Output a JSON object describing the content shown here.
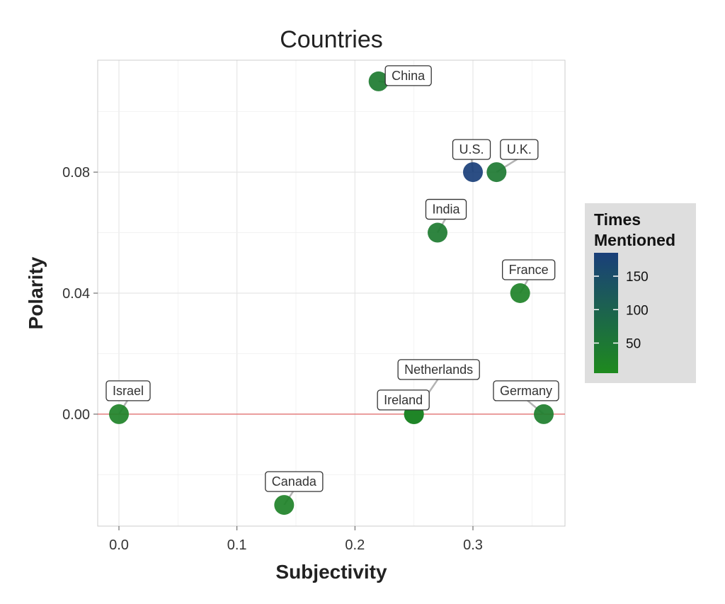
{
  "chart_data": {
    "type": "scatter",
    "title": "Countries",
    "xlabel": "Subjectivity",
    "ylabel": "Polarity",
    "xlim": [
      -0.018,
      0.378
    ],
    "ylim": [
      -0.037,
      0.117
    ],
    "x_ticks": [
      0.0,
      0.1,
      0.2,
      0.3
    ],
    "x_tick_labels": [
      "0.0",
      "0.1",
      "0.2",
      "0.3"
    ],
    "y_ticks": [
      0.0,
      0.04,
      0.08
    ],
    "y_tick_labels": [
      "0.00",
      "0.04",
      "0.08"
    ],
    "reference_line": {
      "y": 0.0,
      "color": "#e06666"
    },
    "points": [
      {
        "label": "China",
        "x": 0.22,
        "y": 0.11,
        "times_mentioned": 40
      },
      {
        "label": "U.S.",
        "x": 0.3,
        "y": 0.08,
        "times_mentioned": 185
      },
      {
        "label": "U.K.",
        "x": 0.32,
        "y": 0.08,
        "times_mentioned": 45
      },
      {
        "label": "India",
        "x": 0.27,
        "y": 0.06,
        "times_mentioned": 40
      },
      {
        "label": "France",
        "x": 0.34,
        "y": 0.04,
        "times_mentioned": 25
      },
      {
        "label": "Israel",
        "x": 0.0,
        "y": 0.0,
        "times_mentioned": 25
      },
      {
        "label": "Netherlands",
        "x": 0.25,
        "y": 0.0,
        "times_mentioned": 20
      },
      {
        "label": "Ireland",
        "x": 0.25,
        "y": 0.0,
        "times_mentioned": 20
      },
      {
        "label": "Germany",
        "x": 0.36,
        "y": 0.0,
        "times_mentioned": 35
      },
      {
        "label": "Canada",
        "x": 0.14,
        "y": -0.03,
        "times_mentioned": 25
      }
    ],
    "legend": {
      "title_line1": "Times",
      "title_line2": "Mentioned",
      "placement": "right",
      "min": 5,
      "max": 185,
      "ticks": [
        50,
        100,
        150
      ],
      "tick_labels": [
        "50",
        "100",
        "150"
      ],
      "color_low": "#1e8a1e",
      "color_high": "#1a3f7a"
    },
    "colors": {
      "grid": "#e6e6e6",
      "panel_border": "#cccccc",
      "legend_bg": "#dedede",
      "label_line": "#b3b3b3"
    }
  }
}
